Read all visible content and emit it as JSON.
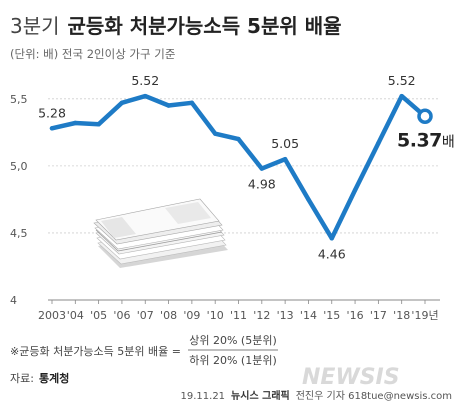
{
  "header": {
    "title_part1": "3분기",
    "title_part2": "균등화 처분가능소득 5분위 배율",
    "subtitle": "(단위: 배)  전국 2인이상 가구 기준"
  },
  "chart_data": {
    "type": "line",
    "x": [
      "2003",
      "'04",
      "'05",
      "'06",
      "'07",
      "'08",
      "'09",
      "'10",
      "'11",
      "'12",
      "'13",
      "'14",
      "'15",
      "'16",
      "'17",
      "'18",
      "'19년"
    ],
    "series": [
      {
        "values": [
          5.28,
          5.32,
          5.31,
          5.47,
          5.52,
          5.45,
          5.47,
          5.24,
          5.2,
          4.98,
          5.05,
          4.75,
          4.46,
          4.82,
          5.17,
          5.52,
          5.37
        ]
      }
    ],
    "ylim": [
      4.0,
      5.7
    ],
    "yticks": [
      {
        "value": 4.0,
        "label": "4"
      },
      {
        "value": 4.5,
        "label": "4,5"
      },
      {
        "value": 5.0,
        "label": "5,0"
      },
      {
        "value": 5.5,
        "label": "5,5"
      }
    ],
    "data_labels": [
      {
        "index": 0,
        "text": "5.28",
        "pos": "above"
      },
      {
        "index": 4,
        "text": "5.52",
        "pos": "above"
      },
      {
        "index": 9,
        "text": "4.98",
        "pos": "below"
      },
      {
        "index": 10,
        "text": "5.05",
        "pos": "above"
      },
      {
        "index": 12,
        "text": "4.46",
        "pos": "below"
      },
      {
        "index": 15,
        "text": "5.52",
        "pos": "above"
      }
    ],
    "final_label": {
      "value": "5.37",
      "unit": "배"
    },
    "grid": true,
    "line_color": "#1e7bc6"
  },
  "footnote": {
    "prefix": "※균등화 처분가능소득 5분위 배율 =",
    "numerator": "상위 20% (5분위)",
    "denominator": "하위 20% (1분위)"
  },
  "source": {
    "label": "자료:",
    "value": "통계청"
  },
  "credit": {
    "date": "19.11.21",
    "agency": "뉴시스 그래픽",
    "author": "전진우 기자 618tue@newsis.com"
  },
  "logo": "NEWSIS"
}
